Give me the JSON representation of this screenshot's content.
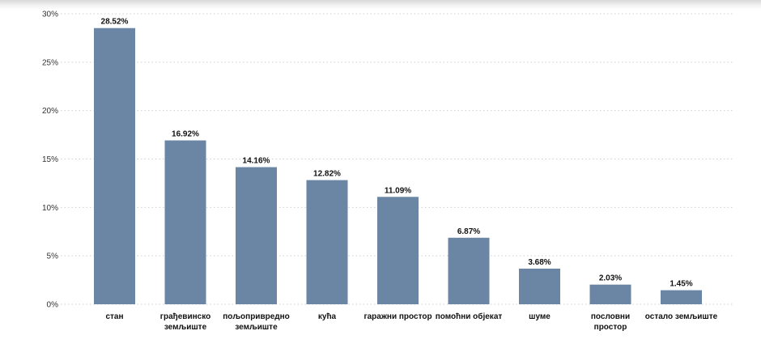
{
  "chart_data": {
    "type": "bar",
    "categories": [
      [
        "стан"
      ],
      [
        "грађевинско",
        "земљиште"
      ],
      [
        "пољопривредно",
        "земљиште"
      ],
      [
        "кућа"
      ],
      [
        "гаражни простор"
      ],
      [
        "помоћни објекат"
      ],
      [
        "шуме"
      ],
      [
        "пословни",
        "простор"
      ],
      [
        "остало земљиште"
      ]
    ],
    "values": [
      28.52,
      16.92,
      14.16,
      12.82,
      11.09,
      6.87,
      3.68,
      2.03,
      1.45
    ],
    "data_labels": [
      "28.52%",
      "16.92%",
      "14.16%",
      "12.82%",
      "11.09%",
      "6.87%",
      "3.68%",
      "2.03%",
      "1.45%"
    ],
    "ylim": [
      0,
      30
    ],
    "yticks": [
      0,
      5,
      10,
      15,
      20,
      25,
      30
    ],
    "ytick_labels": [
      "0%",
      "5%",
      "10%",
      "15%",
      "20%",
      "25%",
      "30%"
    ],
    "title": "",
    "xlabel": "",
    "ylabel": "",
    "grid": true,
    "grid_style": "dotted",
    "bar_color": "#6a86a4",
    "legend": "none"
  }
}
